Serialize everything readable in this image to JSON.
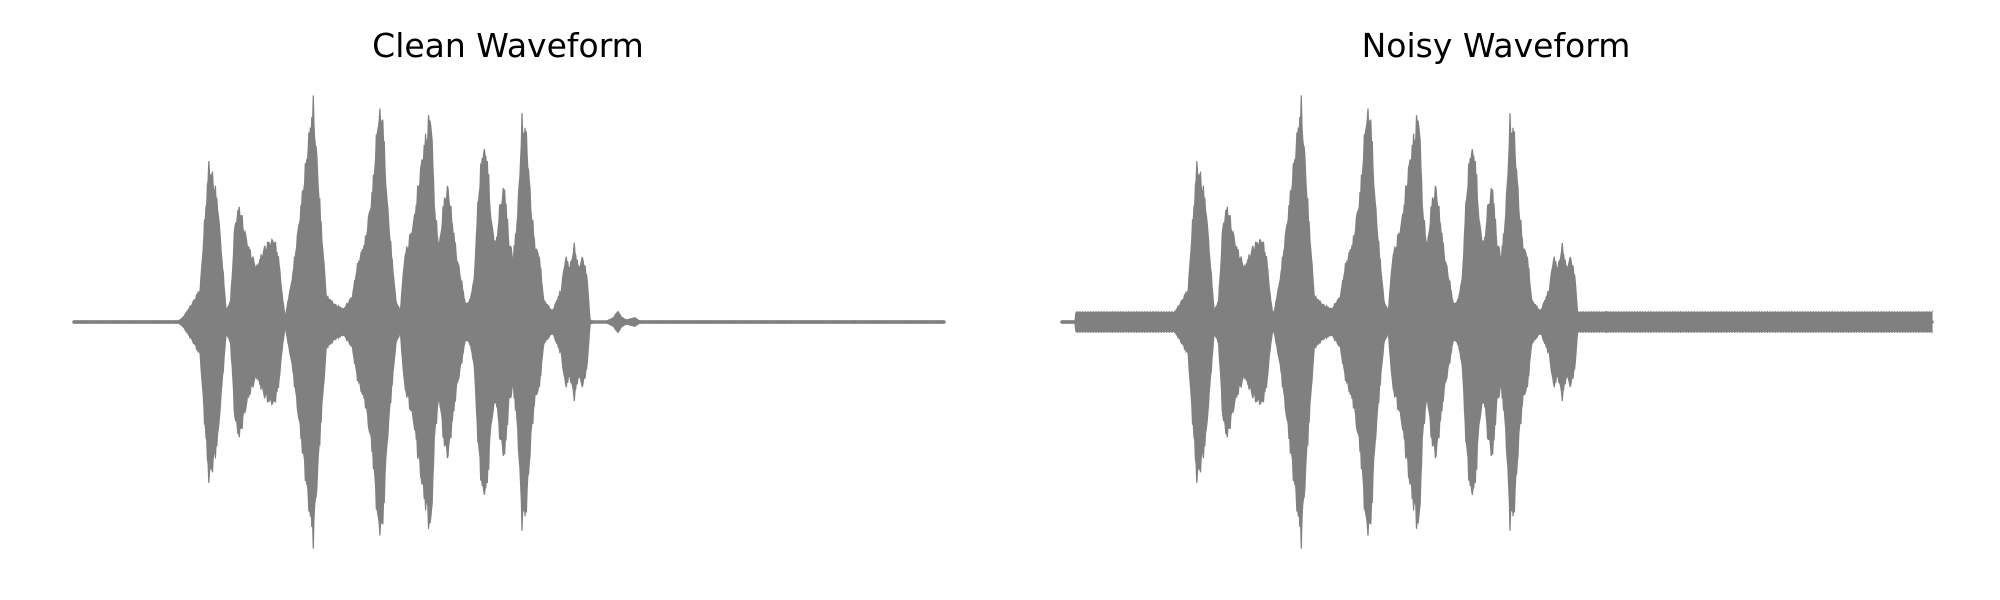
{
  "chart_data": [
    {
      "type": "line",
      "title": "Clean Waveform",
      "xlabel": "",
      "ylabel": "",
      "axes_visible": false,
      "grid": false,
      "color": "#808080",
      "xlim": [
        0,
        1
      ],
      "ylim": [
        -1,
        1
      ],
      "envelope": {
        "x": [
          0.0,
          0.12,
          0.125,
          0.135,
          0.145,
          0.15,
          0.155,
          0.16,
          0.165,
          0.17,
          0.175,
          0.18,
          0.185,
          0.19,
          0.2,
          0.21,
          0.22,
          0.23,
          0.235,
          0.24,
          0.243,
          0.246,
          0.25,
          0.26,
          0.27,
          0.275,
          0.285,
          0.29,
          0.295,
          0.3,
          0.31,
          0.32,
          0.325,
          0.335,
          0.343,
          0.35,
          0.355,
          0.36,
          0.365,
          0.37,
          0.375,
          0.38,
          0.39,
          0.4,
          0.41,
          0.415,
          0.42,
          0.425,
          0.43,
          0.44,
          0.445,
          0.45,
          0.455,
          0.46,
          0.465,
          0.47,
          0.475,
          0.48,
          0.485,
          0.49,
          0.495,
          0.5,
          0.505,
          0.51,
          0.515,
          0.52,
          0.525,
          0.53,
          0.535,
          0.54,
          0.55,
          0.56,
          0.565,
          0.57,
          0.575,
          0.58,
          0.585,
          0.59,
          0.593,
          0.6,
          0.61,
          0.62,
          0.625,
          0.63,
          0.635,
          0.64,
          0.645,
          0.65,
          0.655,
          0.66,
          0.665,
          0.67,
          0.68,
          0.69,
          0.7,
          0.7,
          0.7,
          0.71,
          0.72,
          0.725,
          0.73,
          0.735,
          0.74,
          0.75,
          0.8,
          0.85,
          0.9,
          0.95,
          1.0
        ],
        "amplitude": [
          0.005,
          0.005,
          0.02,
          0.08,
          0.15,
          0.45,
          0.72,
          0.66,
          0.55,
          0.3,
          0.05,
          0.1,
          0.45,
          0.53,
          0.35,
          0.25,
          0.35,
          0.38,
          0.3,
          0.1,
          0.02,
          0.1,
          0.18,
          0.5,
          0.85,
          1.0,
          0.4,
          0.12,
          0.1,
          0.08,
          0.06,
          0.12,
          0.25,
          0.38,
          0.6,
          0.96,
          0.93,
          0.55,
          0.32,
          0.1,
          0.05,
          0.3,
          0.45,
          0.75,
          0.97,
          0.5,
          0.35,
          0.55,
          0.62,
          0.3,
          0.2,
          0.08,
          0.1,
          0.2,
          0.6,
          0.8,
          0.75,
          0.45,
          0.35,
          0.55,
          0.62,
          0.37,
          0.3,
          0.5,
          0.92,
          0.86,
          0.55,
          0.35,
          0.3,
          0.1,
          0.05,
          0.15,
          0.3,
          0.25,
          0.35,
          0.25,
          0.3,
          0.2,
          0.01,
          0.0,
          0.0,
          0.02,
          0.05,
          0.02,
          0.01,
          0.015,
          0.02,
          0.005,
          0.005,
          0.005,
          0.005,
          0.005,
          0.005,
          0.005,
          0.005,
          0.005,
          0.005,
          0.005,
          0.005,
          0.005,
          0.005,
          0.005,
          0.005,
          0.005,
          0.005,
          0.005,
          0.005,
          0.005,
          0.005
        ]
      }
    },
    {
      "type": "line",
      "title": "Noisy Waveform",
      "xlabel": "",
      "ylabel": "",
      "axes_visible": false,
      "grid": false,
      "color": "#808080",
      "xlim": [
        0,
        1
      ],
      "ylim": [
        -1,
        1
      ],
      "noise_floor": 0.045,
      "envelope": {
        "x": [
          0.0,
          0.12,
          0.125,
          0.135,
          0.145,
          0.15,
          0.155,
          0.16,
          0.165,
          0.17,
          0.175,
          0.18,
          0.185,
          0.19,
          0.2,
          0.21,
          0.22,
          0.23,
          0.235,
          0.24,
          0.243,
          0.246,
          0.25,
          0.26,
          0.27,
          0.275,
          0.285,
          0.29,
          0.295,
          0.3,
          0.31,
          0.32,
          0.325,
          0.335,
          0.343,
          0.35,
          0.355,
          0.36,
          0.365,
          0.37,
          0.375,
          0.38,
          0.39,
          0.4,
          0.41,
          0.415,
          0.42,
          0.425,
          0.43,
          0.44,
          0.445,
          0.45,
          0.455,
          0.46,
          0.465,
          0.47,
          0.475,
          0.48,
          0.485,
          0.49,
          0.495,
          0.5,
          0.505,
          0.51,
          0.515,
          0.52,
          0.525,
          0.53,
          0.535,
          0.54,
          0.55,
          0.56,
          0.565,
          0.57,
          0.575,
          0.58,
          0.585,
          0.59,
          0.593,
          0.6,
          0.61,
          0.62,
          0.625,
          0.63,
          0.635,
          0.64,
          0.645,
          0.65,
          0.655,
          0.66,
          0.665,
          0.67,
          0.68,
          0.69,
          0.7,
          0.7,
          0.7,
          0.71,
          0.72,
          0.725,
          0.73,
          0.735,
          0.74,
          0.75,
          0.8,
          0.85,
          0.9,
          0.95,
          1.0
        ],
        "amplitude": [
          0.005,
          0.005,
          0.02,
          0.08,
          0.15,
          0.45,
          0.72,
          0.66,
          0.55,
          0.3,
          0.05,
          0.1,
          0.45,
          0.53,
          0.35,
          0.25,
          0.35,
          0.38,
          0.3,
          0.1,
          0.02,
          0.1,
          0.18,
          0.5,
          0.85,
          1.0,
          0.4,
          0.12,
          0.1,
          0.08,
          0.06,
          0.12,
          0.25,
          0.38,
          0.6,
          0.96,
          0.93,
          0.55,
          0.32,
          0.1,
          0.05,
          0.3,
          0.45,
          0.75,
          0.97,
          0.5,
          0.35,
          0.55,
          0.62,
          0.3,
          0.2,
          0.08,
          0.1,
          0.2,
          0.6,
          0.8,
          0.75,
          0.45,
          0.35,
          0.55,
          0.62,
          0.37,
          0.3,
          0.5,
          0.92,
          0.86,
          0.55,
          0.35,
          0.3,
          0.1,
          0.05,
          0.15,
          0.3,
          0.25,
          0.35,
          0.25,
          0.3,
          0.2,
          0.01,
          0.0,
          0.0,
          0.02,
          0.05,
          0.02,
          0.01,
          0.015,
          0.02,
          0.005,
          0.005,
          0.005,
          0.005,
          0.005,
          0.005,
          0.005,
          0.005,
          0.005,
          0.005,
          0.005,
          0.005,
          0.005,
          0.005,
          0.005,
          0.005,
          0.005,
          0.005,
          0.005,
          0.005,
          0.005,
          0.005
        ]
      }
    }
  ]
}
